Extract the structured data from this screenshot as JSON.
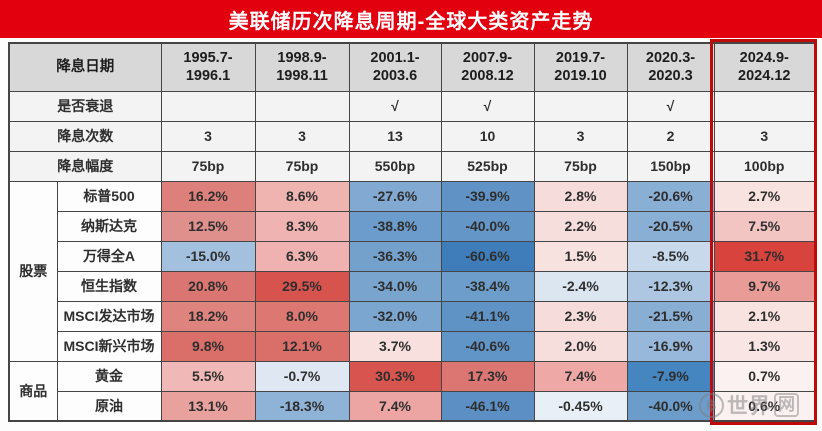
{
  "title": "美联储历次降息周期-全球大类资产走势",
  "colors": {
    "title_bar_bg": "#e2000f",
    "title_text": "#ffffff",
    "header_bg": "#d8d8d8",
    "meta_bg": "#f3f3f3",
    "label_bg": "#fdfdfd",
    "grid_line": "#454545",
    "highlight_border": "#c00a0a"
  },
  "watermark": {
    "icon": "coin-bitcoin-icon",
    "icon_glyph": "฿",
    "text": "世界",
    "boxed": "网"
  },
  "table": {
    "corner_label": "降息日期",
    "periods": [
      {
        "line1": "1995.7-",
        "line2": "1996.1"
      },
      {
        "line1": "1998.9-",
        "line2": "1998.11"
      },
      {
        "line1": "2001.1-",
        "line2": "2003.6"
      },
      {
        "line1": "2007.9-",
        "line2": "2008.12"
      },
      {
        "line1": "2019.7-",
        "line2": "2019.10"
      },
      {
        "line1": "2020.3-",
        "line2": "2020.3"
      },
      {
        "line1": "2024.9-",
        "line2": "2024.12"
      }
    ],
    "meta_rows": [
      {
        "label": "是否衰退",
        "values": [
          "",
          "",
          "√",
          "√",
          "",
          "√",
          ""
        ]
      },
      {
        "label": "降息次数",
        "values": [
          "3",
          "3",
          "13",
          "10",
          "3",
          "2",
          "3"
        ]
      },
      {
        "label": "降息幅度",
        "values": [
          "75bp",
          "75bp",
          "550bp",
          "525bp",
          "75bp",
          "150bp",
          "100bp"
        ]
      }
    ],
    "groups": [
      {
        "label": "股票",
        "rows": [
          {
            "label": "标普500",
            "cells": [
              {
                "v": "16.2%",
                "bg": "#dd807b"
              },
              {
                "v": "8.6%",
                "bg": "#efb3b0"
              },
              {
                "v": "-27.6%",
                "bg": "#82a9d1"
              },
              {
                "v": "-39.9%",
                "bg": "#6092c5"
              },
              {
                "v": "2.8%",
                "bg": "#f6dcda"
              },
              {
                "v": "-20.6%",
                "bg": "#8aafd5"
              },
              {
                "v": "2.7%",
                "bg": "#f8e3e1"
              }
            ]
          },
          {
            "label": "纳斯达克",
            "cells": [
              {
                "v": "12.5%",
                "bg": "#e0908c"
              },
              {
                "v": "8.3%",
                "bg": "#efb4b2"
              },
              {
                "v": "-38.8%",
                "bg": "#6c9ccb"
              },
              {
                "v": "-40.0%",
                "bg": "#6496c8"
              },
              {
                "v": "2.2%",
                "bg": "#f6dedc"
              },
              {
                "v": "-20.5%",
                "bg": "#8aafd5"
              },
              {
                "v": "7.5%",
                "bg": "#f2c5c3"
              }
            ]
          },
          {
            "label": "万得全A",
            "cells": [
              {
                "v": "-15.0%",
                "bg": "#a3c0de"
              },
              {
                "v": "6.3%",
                "bg": "#efb2b0"
              },
              {
                "v": "-36.3%",
                "bg": "#74a1cc"
              },
              {
                "v": "-60.6%",
                "bg": "#3e7cba"
              },
              {
                "v": "1.5%",
                "bg": "#f8e2e0"
              },
              {
                "v": "-8.5%",
                "bg": "#c7d9eb"
              },
              {
                "v": "31.7%",
                "bg": "#d9433e"
              }
            ]
          },
          {
            "label": "恒生指数",
            "cells": [
              {
                "v": "20.8%",
                "bg": "#db7571"
              },
              {
                "v": "29.5%",
                "bg": "#d6534e"
              },
              {
                "v": "-34.0%",
                "bg": "#79a4ce"
              },
              {
                "v": "-38.4%",
                "bg": "#6d9dca"
              },
              {
                "v": "-2.4%",
                "bg": "#dce6f1"
              },
              {
                "v": "-12.3%",
                "bg": "#adc7e2"
              },
              {
                "v": "9.7%",
                "bg": "#e99b97"
              }
            ]
          },
          {
            "label": "MSCI发达市场",
            "cells": [
              {
                "v": "18.2%",
                "bg": "#de837e"
              },
              {
                "v": "8.0%",
                "bg": "#dc7772"
              },
              {
                "v": "-32.0%",
                "bg": "#7ba6cf"
              },
              {
                "v": "-41.1%",
                "bg": "#5f92c5"
              },
              {
                "v": "2.3%",
                "bg": "#f6dddb"
              },
              {
                "v": "-21.5%",
                "bg": "#88aed4"
              },
              {
                "v": "2.1%",
                "bg": "#f8e3e1"
              }
            ]
          },
          {
            "label": "MSCI新兴市场",
            "cells": [
              {
                "v": "9.8%",
                "bg": "#da6e69"
              },
              {
                "v": "12.1%",
                "bg": "#da6f6a"
              },
              {
                "v": "3.7%",
                "bg": "#f7e0de"
              },
              {
                "v": "-40.6%",
                "bg": "#6295c7"
              },
              {
                "v": "2.0%",
                "bg": "#f6dedc"
              },
              {
                "v": "-16.9%",
                "bg": "#97b8da"
              },
              {
                "v": "1.3%",
                "bg": "#f9e6e4"
              }
            ]
          }
        ]
      },
      {
        "label": "商品",
        "rows": [
          {
            "label": "黄金",
            "cells": [
              {
                "v": "5.5%",
                "bg": "#f0b9b7"
              },
              {
                "v": "-0.7%",
                "bg": "#dfe8f2"
              },
              {
                "v": "30.3%",
                "bg": "#d8544f"
              },
              {
                "v": "17.3%",
                "bg": "#dc7672"
              },
              {
                "v": "7.4%",
                "bg": "#eea9a6"
              },
              {
                "v": "-7.9%",
                "bg": "#4585c0"
              },
              {
                "v": "0.7%",
                "bg": "#fbf1f0"
              }
            ]
          },
          {
            "label": "原油",
            "cells": [
              {
                "v": "13.1%",
                "bg": "#e9a19d"
              },
              {
                "v": "-18.3%",
                "bg": "#8fb2d7"
              },
              {
                "v": "7.4%",
                "bg": "#eca5a2"
              },
              {
                "v": "-46.1%",
                "bg": "#5c8fc4"
              },
              {
                "v": "-0.45%",
                "bg": "#e9eff6"
              },
              {
                "v": "-40.0%",
                "bg": "#6b9cca"
              },
              {
                "v": "0.6%",
                "bg": "#fbf1f0"
              }
            ]
          }
        ]
      }
    ]
  },
  "chart_data": {
    "type": "heatmap",
    "title": "美联储历次降息周期-全球大类资产走势",
    "columns": [
      "1995.7-1996.1",
      "1998.9-1998.11",
      "2001.1-2003.6",
      "2007.9-2008.12",
      "2019.7-2019.10",
      "2020.3-2020.3",
      "2024.9-2024.12"
    ],
    "recession": [
      false,
      false,
      true,
      true,
      false,
      true,
      false
    ],
    "cut_counts": [
      3,
      3,
      13,
      10,
      3,
      2,
      3
    ],
    "cut_magnitude_bp": [
      75,
      75,
      550,
      525,
      75,
      150,
      100
    ],
    "series": [
      {
        "group": "股票",
        "name": "标普500",
        "values_pct": [
          16.2,
          8.6,
          -27.6,
          -39.9,
          2.8,
          -20.6,
          2.7
        ]
      },
      {
        "group": "股票",
        "name": "纳斯达克",
        "values_pct": [
          12.5,
          8.3,
          -38.8,
          -40.0,
          2.2,
          -20.5,
          7.5
        ]
      },
      {
        "group": "股票",
        "name": "万得全A",
        "values_pct": [
          -15.0,
          6.3,
          -36.3,
          -60.6,
          1.5,
          -8.5,
          31.7
        ]
      },
      {
        "group": "股票",
        "name": "恒生指数",
        "values_pct": [
          20.8,
          29.5,
          -34.0,
          -38.4,
          -2.4,
          -12.3,
          9.7
        ]
      },
      {
        "group": "股票",
        "name": "MSCI发达市场",
        "values_pct": [
          18.2,
          8.0,
          -32.0,
          -41.1,
          2.3,
          -21.5,
          2.1
        ]
      },
      {
        "group": "股票",
        "name": "MSCI新兴市场",
        "values_pct": [
          9.8,
          12.1,
          3.7,
          -40.6,
          2.0,
          -16.9,
          1.3
        ]
      },
      {
        "group": "商品",
        "name": "黄金",
        "values_pct": [
          5.5,
          -0.7,
          30.3,
          17.3,
          7.4,
          -7.9,
          0.7
        ]
      },
      {
        "group": "商品",
        "name": "原油",
        "values_pct": [
          13.1,
          -18.3,
          7.4,
          -46.1,
          -0.45,
          -40.0,
          0.6
        ]
      }
    ],
    "color_scale": {
      "positive": "red",
      "negative": "blue"
    },
    "highlighted_column": "2024.9-2024.12"
  }
}
